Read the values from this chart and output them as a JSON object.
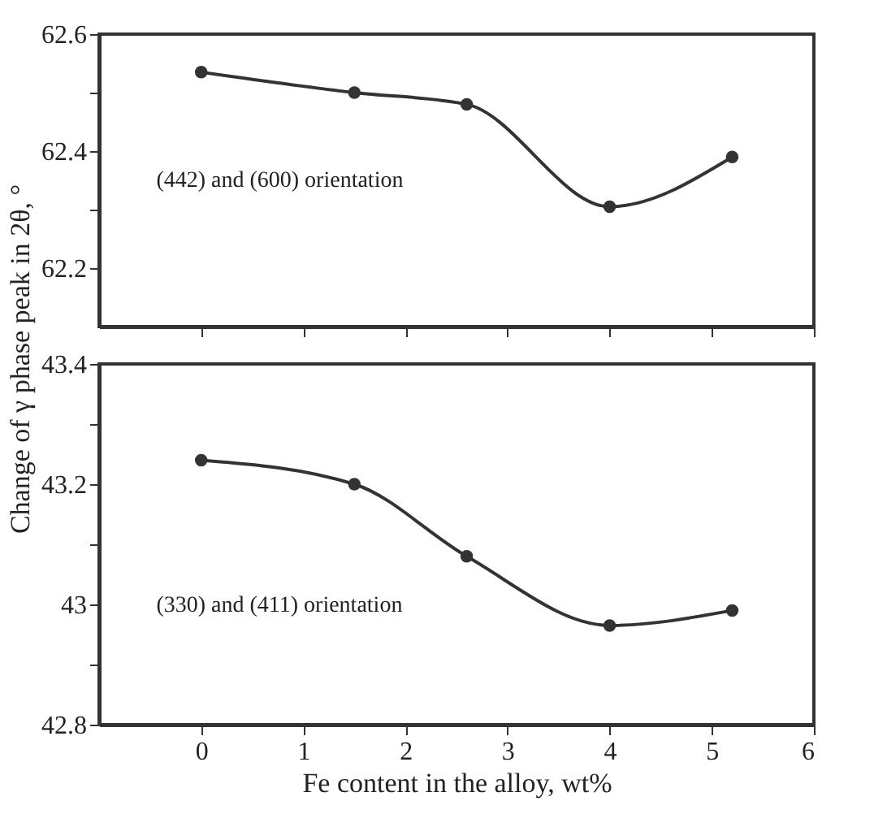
{
  "chart_data": [
    {
      "type": "line",
      "ylabel": "Change of γ phase peak in 2θ, °",
      "x": [
        0,
        1.5,
        2.6,
        4,
        5.2
      ],
      "xlim": [
        -1,
        6
      ],
      "xticks": [
        0,
        1,
        2,
        3,
        4,
        5,
        6
      ],
      "ylim": [
        62.1,
        62.6
      ],
      "yticks": [
        62.6,
        {
          "value": 62.5,
          "label": null
        },
        62.4,
        {
          "value": 62.3,
          "label": null
        },
        62.2
      ],
      "tick_labels": "y",
      "marker": "circle",
      "line_style": "solid",
      "grid": false,
      "series": [
        {
          "color": "#333333",
          "values": [
            62.535,
            62.5,
            62.48,
            62.305,
            62.39
          ]
        }
      ],
      "annotations": [
        "(442) and (600) orientation"
      ]
    },
    {
      "type": "line",
      "xlabel": "Fe content in the alloy, wt%",
      "x": [
        0,
        1.5,
        2.6,
        4,
        5.2
      ],
      "xlim": [
        -1,
        6
      ],
      "xticks": [
        0,
        1,
        2,
        3,
        4,
        5,
        6
      ],
      "ylim": [
        42.8,
        43.4
      ],
      "yticks": [
        43.4,
        {
          "value": 43.3,
          "label": null
        },
        43.2,
        {
          "value": 43.1,
          "label": null
        },
        43,
        {
          "value": 42.9,
          "label": null
        },
        42.8
      ],
      "marker": "circle",
      "line_style": "solid",
      "grid": false,
      "series": [
        {
          "color": "#333333",
          "values": [
            43.24,
            43.2,
            43.08,
            42.965,
            42.99
          ]
        }
      ],
      "annotations": [
        "(330) and (411) orientation"
      ]
    }
  ]
}
